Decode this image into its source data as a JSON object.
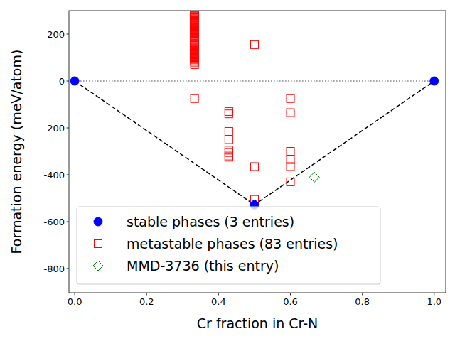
{
  "chart_data": {
    "type": "scatter",
    "x_label": "Cr fraction in Cr-N",
    "y_label": "Formation energy (meV/atom)",
    "xlim": [
      -0.016,
      1.032
    ],
    "ylim": [
      -903,
      300
    ],
    "xticks": [
      {
        "value": 0,
        "label": "0.0"
      },
      0.2,
      0.4,
      0.6,
      0.8,
      {
        "value": 1,
        "label": "1.0"
      }
    ],
    "yticks": [
      -800,
      -600,
      -400,
      -200,
      0,
      200
    ],
    "legend": "lower left",
    "grid": false,
    "series": [
      {
        "type": "line",
        "color": "#808080",
        "line_style": "dotted",
        "x": [
          0,
          1
        ],
        "values": [
          0,
          0
        ]
      },
      {
        "type": "line",
        "color": "#000000",
        "line_style": "dashed",
        "x": [
          0,
          0.5,
          1
        ],
        "values": [
          0,
          -528,
          0
        ]
      },
      {
        "name": "metastable phases (83 entries)",
        "type": "scatter",
        "color": "#ff0000",
        "marker": "square-open",
        "x": [
          0.3333,
          0.3333,
          0.3333,
          0.3333,
          0.3333,
          0.3333,
          0.3333,
          0.3333,
          0.3333,
          0.3333,
          0.3333,
          0.3333,
          0.3333,
          0.3333,
          0.3333,
          0.3333,
          0.3333,
          0.3333,
          0.3333,
          0.3333,
          0.3333,
          0.3333,
          0.3333,
          0.3333,
          0.3333,
          0.3333,
          0.3333,
          0.3333,
          0.3333,
          0.3333,
          0.3333,
          0.3333,
          0.3333,
          0.3333,
          0.3333,
          0.3333,
          0.3333,
          0.3333,
          0.3333,
          0.3333,
          0.3333,
          0.3333,
          0.3333,
          0.3333,
          0.3333,
          0.3333,
          0.3333,
          0.3333,
          0.3333,
          0.3333,
          0.3333,
          0.3333,
          0.3333,
          0.3333,
          0.3333,
          0.3333,
          0.3333,
          0.3333,
          0.3333,
          0.3333,
          0.3333,
          0.3333,
          0.3333,
          0.3333,
          0.3333,
          0.3333,
          0.5,
          0.5,
          0.5,
          0.4286,
          0.4286,
          0.4286,
          0.4286,
          0.4286,
          0.4286,
          0.4286,
          0.4286,
          0.6,
          0.6,
          0.6,
          0.6,
          0.6,
          0.6
        ],
        "values": [
          70,
          80,
          85,
          90,
          95,
          98,
          100,
          102,
          105,
          108,
          110,
          112,
          115,
          118,
          120,
          122,
          125,
          128,
          130,
          132,
          135,
          140,
          145,
          150,
          155,
          160,
          165,
          170,
          175,
          180,
          185,
          190,
          195,
          200,
          203,
          206,
          210,
          213,
          215,
          218,
          220,
          225,
          228,
          230,
          235,
          238,
          240,
          245,
          248,
          250,
          255,
          258,
          260,
          262,
          265,
          268,
          270,
          272,
          275,
          278,
          280,
          283,
          285,
          288,
          290,
          -75,
          155,
          -365,
          -505,
          -130,
          -140,
          -215,
          -250,
          -295,
          -305,
          -320,
          -325,
          -75,
          -135,
          -300,
          -335,
          -365,
          -430
        ]
      },
      {
        "name": "stable phases (3 entries)",
        "type": "scatter",
        "color": "#0000ff",
        "marker": "circle",
        "x": [
          0,
          0.5,
          1
        ],
        "values": [
          0,
          -528,
          0
        ]
      },
      {
        "name": "MMD-3736 (this entry)",
        "type": "scatter",
        "color": "#008000",
        "marker": "diamond-open",
        "x": [
          0.6667
        ],
        "values": [
          -410
        ]
      }
    ]
  }
}
